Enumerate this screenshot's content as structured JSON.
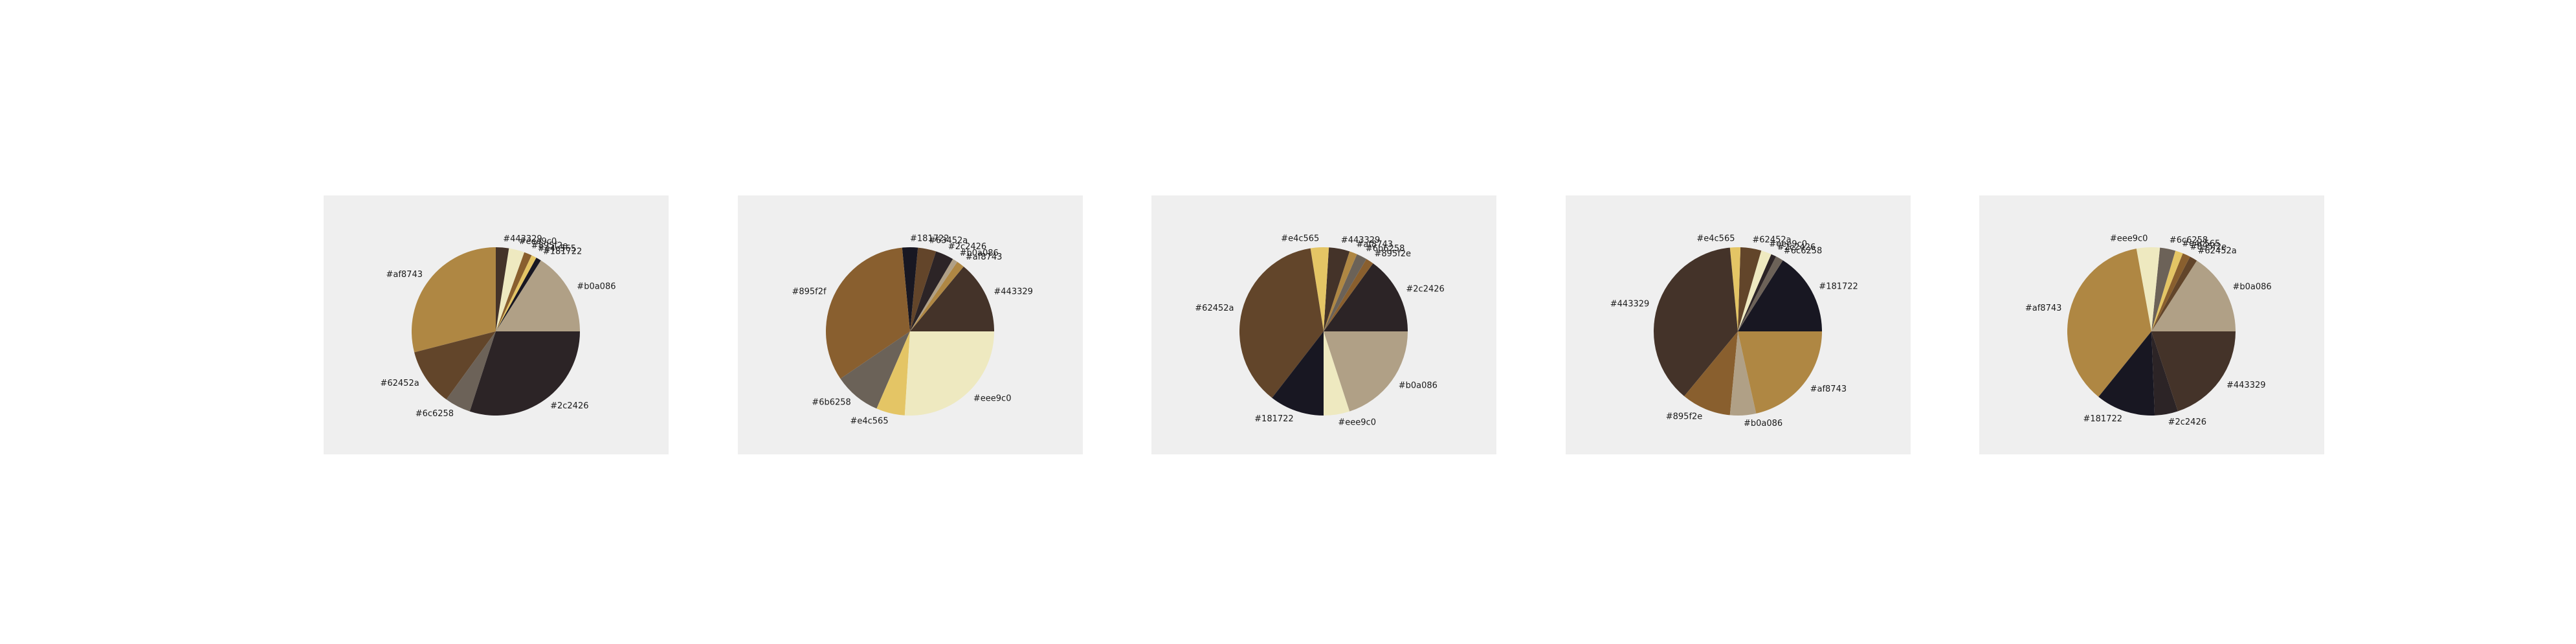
{
  "chart_data": [
    {
      "type": "pie",
      "slices": [
        {
          "label": "#b0a086",
          "color": "#b0a086",
          "value": 16.0
        },
        {
          "label": "#181722",
          "color": "#181722",
          "value": 1.0
        },
        {
          "label": "#e4c565",
          "color": "#e4c565",
          "value": 1.0
        },
        {
          "label": "#895f2e",
          "color": "#895f2e",
          "value": 1.5
        },
        {
          "label": "#eee9c0",
          "color": "#eee9c0",
          "value": 3.0
        },
        {
          "label": "#443329",
          "color": "#443329",
          "value": 2.5
        },
        {
          "label": "#af8743",
          "color": "#af8743",
          "value": 29.0
        },
        {
          "label": "#62452a",
          "color": "#62452a",
          "value": 11.0
        },
        {
          "label": "#6c6258",
          "color": "#6c6258",
          "value": 5.0
        },
        {
          "label": "#2c2426",
          "color": "#2c2426",
          "value": 30.0
        }
      ]
    },
    {
      "type": "pie",
      "slices": [
        {
          "label": "#443329",
          "color": "#443329",
          "value": 14.0
        },
        {
          "label": "#af8743",
          "color": "#af8743",
          "value": 1.5
        },
        {
          "label": "#b0a086",
          "color": "#b0a086",
          "value": 1.0
        },
        {
          "label": "#2c2426",
          "color": "#2c2426",
          "value": 3.5
        },
        {
          "label": "#63452a",
          "color": "#63452a",
          "value": 3.5
        },
        {
          "label": "#181722",
          "color": "#181722",
          "value": 3.0
        },
        {
          "label": "#895f2f",
          "color": "#895f2f",
          "value": 33.0
        },
        {
          "label": "#6b6258",
          "color": "#6b6258",
          "value": 9.0
        },
        {
          "label": "#e4c565",
          "color": "#e4c565",
          "value": 5.5
        },
        {
          "label": "#eee9c0",
          "color": "#eee9c0",
          "value": 26.0
        }
      ]
    },
    {
      "type": "pie",
      "slices": [
        {
          "label": "#2c2426",
          "color": "#2c2426",
          "value": 15.0
        },
        {
          "label": "#895f2e",
          "color": "#895f2e",
          "value": 1.5
        },
        {
          "label": "#6b6258",
          "color": "#6b6258",
          "value": 2.0
        },
        {
          "label": "#af8743",
          "color": "#af8743",
          "value": 1.5
        },
        {
          "label": "#443329",
          "color": "#443329",
          "value": 4.0
        },
        {
          "label": "#e4c565",
          "color": "#e4c565",
          "value": 3.5
        },
        {
          "label": "#62452a",
          "color": "#62452a",
          "value": 37.0
        },
        {
          "label": "#181722",
          "color": "#181722",
          "value": 10.5
        },
        {
          "label": "#eee9c0",
          "color": "#eee9c0",
          "value": 5.0
        },
        {
          "label": "#b0a086",
          "color": "#b0a086",
          "value": 20.0
        }
      ]
    },
    {
      "type": "pie",
      "slices": [
        {
          "label": "#181722",
          "color": "#181722",
          "value": 16.0
        },
        {
          "label": "#6c6258",
          "color": "#6c6258",
          "value": 1.5
        },
        {
          "label": "#2c2426",
          "color": "#2c2426",
          "value": 1.0
        },
        {
          "label": "#eee9c0",
          "color": "#eee9c0",
          "value": 2.0
        },
        {
          "label": "#62452a",
          "color": "#62452a",
          "value": 4.0
        },
        {
          "label": "#e4c565",
          "color": "#e4c565",
          "value": 2.0
        },
        {
          "label": "#443329",
          "color": "#443329",
          "value": 37.5
        },
        {
          "label": "#895f2e",
          "color": "#895f2e",
          "value": 9.5
        },
        {
          "label": "#b0a086",
          "color": "#b0a086",
          "value": 5.0
        },
        {
          "label": "#af8743",
          "color": "#af8743",
          "value": 21.5
        }
      ]
    },
    {
      "type": "pie",
      "slices": [
        {
          "label": "#b0a086",
          "color": "#b0a086",
          "value": 16.0
        },
        {
          "label": "#62452a",
          "color": "#62452a",
          "value": 1.5
        },
        {
          "label": "#895f2e",
          "color": "#895f2e",
          "value": 1.5
        },
        {
          "label": "#e4c565",
          "color": "#e4c565",
          "value": 1.5
        },
        {
          "label": "#6c6258",
          "color": "#6c6258",
          "value": 3.0
        },
        {
          "label": "#eee9c0",
          "color": "#eee9c0",
          "value": 4.5
        },
        {
          "label": "#af8743",
          "color": "#af8743",
          "value": 36.5
        },
        {
          "label": "#181722",
          "color": "#181722",
          "value": 11.5
        },
        {
          "label": "#2c2426",
          "color": "#2c2426",
          "value": 4.5
        },
        {
          "label": "#443329",
          "color": "#443329",
          "value": 20.0
        }
      ]
    }
  ]
}
